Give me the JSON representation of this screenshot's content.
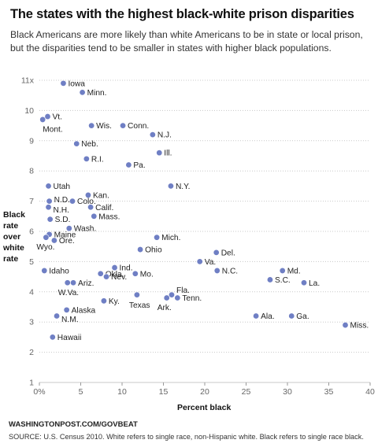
{
  "title": "The states with the highest black-white prison disparities",
  "subtitle": "Black Americans are more likely than white Americans to be in state or local prison, but the disparities tend to be smaller in states with higher black populations.",
  "credit": "WASHINGTONPOST.COM/GOVBEAT",
  "source": "SOURCE: U.S. Census 2010. White refers to single race, non-Hispanic white. Black refers to single race black.",
  "chart_data": {
    "type": "scatter",
    "xlabel": "Percent black",
    "ylabel": "Black rate over white rate",
    "xlim": [
      0,
      40
    ],
    "ylim": [
      1,
      11
    ],
    "x_ticks": [
      "0%",
      "5",
      "10",
      "15",
      "20",
      "25",
      "30",
      "35",
      "40"
    ],
    "y_ticks": [
      "1",
      "2",
      "3",
      "4",
      "5",
      "6",
      "7",
      "8",
      "9",
      "10",
      "11x"
    ],
    "grid": "horizontal dotted",
    "point_color": "#6f7fc4",
    "points": [
      {
        "label": "Iowa",
        "x": 2.9,
        "y": 10.9
      },
      {
        "label": "Minn.",
        "x": 5.2,
        "y": 10.6
      },
      {
        "label": "Vt.",
        "x": 1.0,
        "y": 9.8
      },
      {
        "label": "Mont.",
        "x": 0.4,
        "y": 9.7
      },
      {
        "label": "Wis.",
        "x": 6.3,
        "y": 9.5
      },
      {
        "label": "Conn.",
        "x": 10.1,
        "y": 9.5
      },
      {
        "label": "N.J.",
        "x": 13.7,
        "y": 9.2
      },
      {
        "label": "Neb.",
        "x": 4.5,
        "y": 8.9
      },
      {
        "label": "Ill.",
        "x": 14.5,
        "y": 8.6
      },
      {
        "label": "R.I.",
        "x": 5.7,
        "y": 8.4
      },
      {
        "label": "Pa.",
        "x": 10.8,
        "y": 8.2
      },
      {
        "label": "N.Y.",
        "x": 15.9,
        "y": 7.5
      },
      {
        "label": "Utah",
        "x": 1.1,
        "y": 7.5
      },
      {
        "label": "Kan.",
        "x": 5.9,
        "y": 7.2
      },
      {
        "label": "N.D.",
        "x": 1.2,
        "y": 7.0
      },
      {
        "label": "Colo.",
        "x": 4.0,
        "y": 7.0
      },
      {
        "label": "N.H.",
        "x": 1.1,
        "y": 6.8
      },
      {
        "label": "Calif.",
        "x": 6.2,
        "y": 6.8
      },
      {
        "label": "Mass.",
        "x": 6.6,
        "y": 6.5
      },
      {
        "label": "S.D.",
        "x": 1.3,
        "y": 6.4
      },
      {
        "label": "Wash.",
        "x": 3.6,
        "y": 6.1
      },
      {
        "label": "Maine",
        "x": 1.2,
        "y": 5.9
      },
      {
        "label": "Wyo.",
        "x": 0.8,
        "y": 5.8
      },
      {
        "label": "Ore.",
        "x": 1.8,
        "y": 5.7
      },
      {
        "label": "Mich.",
        "x": 14.2,
        "y": 5.8
      },
      {
        "label": "Ohio",
        "x": 12.2,
        "y": 5.4
      },
      {
        "label": "Del.",
        "x": 21.4,
        "y": 5.3
      },
      {
        "label": "Va.",
        "x": 19.4,
        "y": 5.0
      },
      {
        "label": "Idaho",
        "x": 0.6,
        "y": 4.7
      },
      {
        "label": "N.C.",
        "x": 21.5,
        "y": 4.7
      },
      {
        "label": "Md.",
        "x": 29.4,
        "y": 4.7
      },
      {
        "label": "Ind.",
        "x": 9.1,
        "y": 4.8
      },
      {
        "label": "Okla.",
        "x": 7.4,
        "y": 4.6
      },
      {
        "label": "Mo.",
        "x": 11.6,
        "y": 4.6
      },
      {
        "label": "Nev.",
        "x": 8.1,
        "y": 4.5
      },
      {
        "label": "S.C.",
        "x": 27.9,
        "y": 4.4
      },
      {
        "label": "La.",
        "x": 32.0,
        "y": 4.3
      },
      {
        "label": "Ariz.",
        "x": 4.1,
        "y": 4.3
      },
      {
        "label": "W.Va.",
        "x": 3.4,
        "y": 4.3
      },
      {
        "label": "Fla.",
        "x": 16.0,
        "y": 3.9
      },
      {
        "label": "Texas",
        "x": 11.8,
        "y": 3.9
      },
      {
        "label": "Ark.",
        "x": 15.4,
        "y": 3.8
      },
      {
        "label": "Tenn.",
        "x": 16.7,
        "y": 3.8
      },
      {
        "label": "Ky.",
        "x": 7.8,
        "y": 3.7
      },
      {
        "label": "Alaska",
        "x": 3.3,
        "y": 3.4
      },
      {
        "label": "Ala.",
        "x": 26.2,
        "y": 3.2
      },
      {
        "label": "Ga.",
        "x": 30.5,
        "y": 3.2
      },
      {
        "label": "N.M.",
        "x": 2.1,
        "y": 3.2
      },
      {
        "label": "Miss.",
        "x": 37.0,
        "y": 2.9
      },
      {
        "label": "Hawaii",
        "x": 1.6,
        "y": 2.5
      }
    ]
  }
}
